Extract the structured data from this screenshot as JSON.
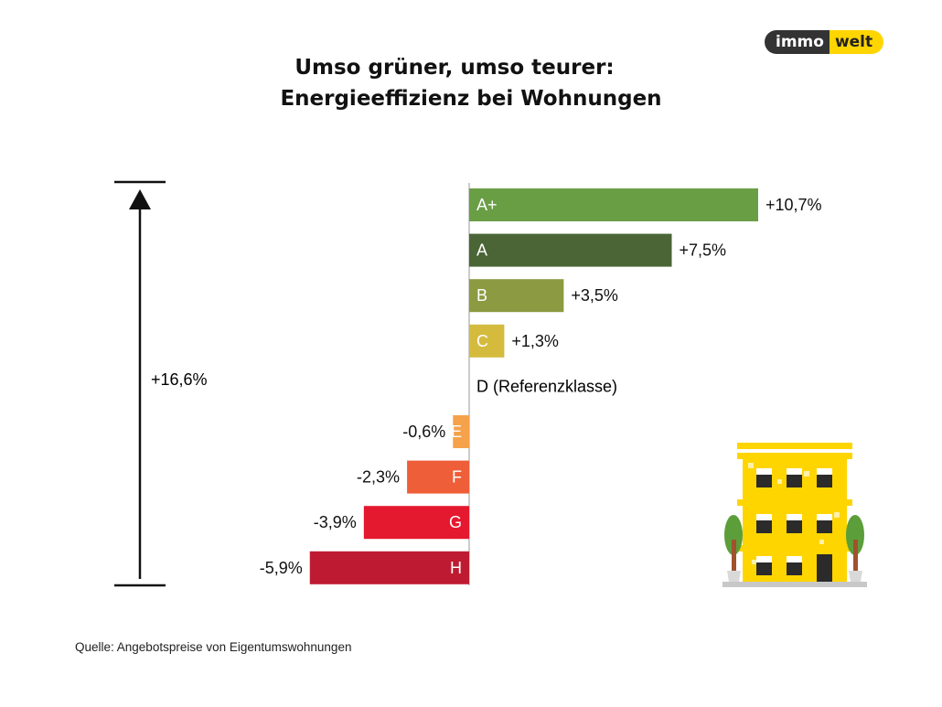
{
  "header": {
    "title_line1": "Umso grüner, umso teurer:",
    "title_line2": "Energieeffizienz bei Wohnungen"
  },
  "logo": {
    "part1": "immo",
    "part2": "welt"
  },
  "span_label": "+16,6%",
  "source": "Quelle: Angebotspreise von Eigentumswohnungen",
  "chart_data": {
    "type": "bar",
    "orientation": "horizontal",
    "categories": [
      "A+",
      "A",
      "B",
      "C",
      "D",
      "E",
      "F",
      "G",
      "H"
    ],
    "values": [
      10.7,
      7.5,
      3.5,
      1.3,
      0,
      -0.6,
      -2.3,
      -3.9,
      -5.9
    ],
    "value_labels": [
      "+10,7%",
      "+7,5%",
      "+3,5%",
      "+1,3%",
      "",
      "-0,6%",
      "-2,3%",
      "-3,9%",
      "-5,9%"
    ],
    "reference_label": "D (Referenzklasse)",
    "colors": [
      "#6A9E45",
      "#4B6537",
      "#8C9A41",
      "#D4BB3E",
      "#ffffff",
      "#F5A24A",
      "#EE5E38",
      "#E4182E",
      "#BE1B32"
    ],
    "ylim": [
      -5.9,
      10.7
    ],
    "grid": false
  }
}
